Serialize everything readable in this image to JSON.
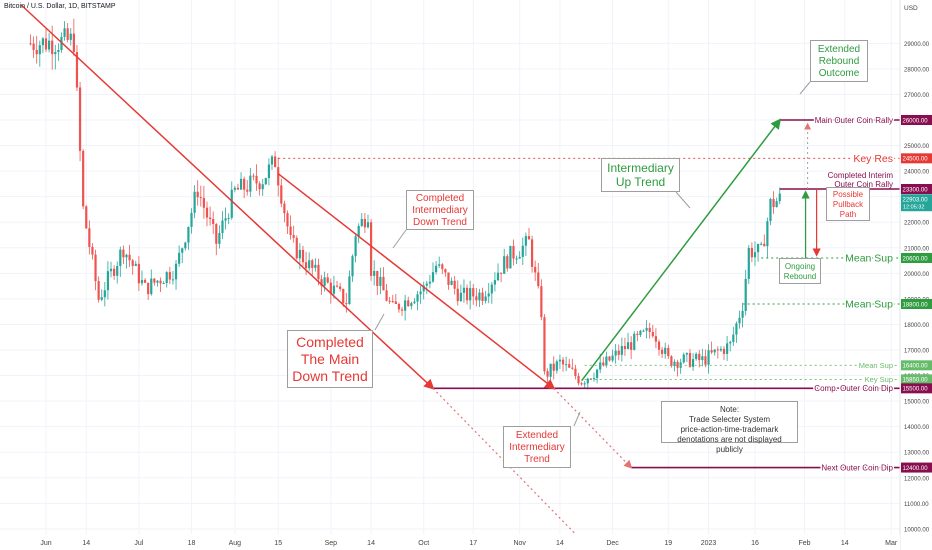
{
  "header": {
    "symbol": "Bitcoin / U.S. Dollar, 1D, BITSTAMP",
    "currency": "USD"
  },
  "colors": {
    "bull": "#26a69a",
    "bear": "#ef5350",
    "red": "#e53935",
    "green": "#2e9c3f",
    "maroon": "#880e4f",
    "grid": "#f0f3fa",
    "dotted_red": "#e57373",
    "dotted_green": "#8bc48e"
  },
  "chart_data": {
    "type": "candlestick",
    "ylim": [
      9800,
      30500
    ],
    "y_ticks": [
      10000,
      11000,
      12000,
      13000,
      14000,
      15000,
      16000,
      17000,
      18000,
      19000,
      20000,
      21000,
      22000,
      23000,
      24000,
      25000,
      26000,
      27000,
      28000,
      29000
    ],
    "x_ticks": [
      {
        "label": "Jun",
        "date": "2022-06-01"
      },
      {
        "label": "14",
        "date": "2022-06-14"
      },
      {
        "label": "Jul",
        "date": "2022-07-01"
      },
      {
        "label": "18",
        "date": "2022-07-18"
      },
      {
        "label": "Aug",
        "date": "2022-08-01"
      },
      {
        "label": "15",
        "date": "2022-08-15"
      },
      {
        "label": "Sep",
        "date": "2022-09-01"
      },
      {
        "label": "14",
        "date": "2022-09-14"
      },
      {
        "label": "Oct",
        "date": "2022-10-01"
      },
      {
        "label": "17",
        "date": "2022-10-17"
      },
      {
        "label": "Nov",
        "date": "2022-11-01"
      },
      {
        "label": "14",
        "date": "2022-11-14"
      },
      {
        "label": "Dec",
        "date": "2022-12-01"
      },
      {
        "label": "19",
        "date": "2022-12-19"
      },
      {
        "label": "2023",
        "date": "2023-01-01"
      },
      {
        "label": "16",
        "date": "2023-01-16"
      },
      {
        "label": "Feb",
        "date": "2023-02-01"
      },
      {
        "label": "14",
        "date": "2023-02-14"
      },
      {
        "label": "Mar",
        "date": "2023-03-01"
      }
    ],
    "price_path": [
      [
        "2022-05-27",
        29000
      ],
      [
        "2022-06-10",
        29100
      ],
      [
        "2022-06-13",
        22500
      ],
      [
        "2022-06-18",
        19000
      ],
      [
        "2022-06-26",
        21000
      ],
      [
        "2022-07-03",
        19400
      ],
      [
        "2022-07-13",
        20200
      ],
      [
        "2022-07-20",
        23300
      ],
      [
        "2022-07-26",
        21200
      ],
      [
        "2022-08-01",
        23200
      ],
      [
        "2022-08-10",
        23700
      ],
      [
        "2022-08-14",
        24400
      ],
      [
        "2022-08-19",
        21200
      ],
      [
        "2022-08-27",
        20000
      ],
      [
        "2022-09-06",
        18900
      ],
      [
        "2022-09-09",
        21600
      ],
      [
        "2022-09-13",
        22400
      ],
      [
        "2022-09-14",
        20200
      ],
      [
        "2022-09-21",
        18600
      ],
      [
        "2022-10-01",
        19400
      ],
      [
        "2022-10-05",
        20300
      ],
      [
        "2022-10-13",
        19100
      ],
      [
        "2022-10-20",
        19200
      ],
      [
        "2022-10-25",
        20100
      ],
      [
        "2022-10-29",
        20700
      ],
      [
        "2022-11-04",
        21200
      ],
      [
        "2022-11-08",
        18500
      ],
      [
        "2022-11-09",
        16000
      ],
      [
        "2022-11-14",
        16500
      ],
      [
        "2022-11-21",
        15800
      ],
      [
        "2022-11-28",
        16400
      ],
      [
        "2022-12-05",
        17100
      ],
      [
        "2022-12-14",
        17800
      ],
      [
        "2022-12-19",
        16600
      ],
      [
        "2022-12-30",
        16600
      ],
      [
        "2023-01-08",
        17200
      ],
      [
        "2023-01-12",
        18800
      ],
      [
        "2023-01-14",
        20900
      ],
      [
        "2023-01-18",
        20800
      ],
      [
        "2023-01-21",
        22700
      ],
      [
        "2023-01-24",
        22900
      ]
    ],
    "levels": [
      {
        "label": "Main Outer Coin Rally",
        "value": 26000,
        "tag": "26000.00",
        "color": "#880e4f",
        "from": "2023-01-24",
        "style": "solid"
      },
      {
        "label": "Key Res",
        "value": 24500,
        "tag": "24500.00",
        "color": "#e53935",
        "from": "2022-08-15",
        "style": "dotted"
      },
      {
        "label": "Completed Interim Outer Coin Rally",
        "line1": "Completed Interim",
        "line2": "Outer Coin Rally",
        "value": 23300,
        "tag": "23300.00",
        "color": "#880e4f",
        "from": "2023-01-24",
        "style": "solid"
      },
      {
        "label": "Mean Sup",
        "value": 20600,
        "tag": "20600.00",
        "color": "#2e9c3f",
        "from": "2023-01-18",
        "style": "dotted"
      },
      {
        "label": "Mean Sup",
        "value": 18800,
        "tag": "18800.00",
        "color": "#2e9c3f",
        "from": "2023-01-12",
        "style": "dotted"
      },
      {
        "label": "Mean Sup",
        "value": 16400,
        "tag": "16400.00",
        "color": "#66bb6a",
        "from": "2022-11-22",
        "style": "dotted",
        "small": true
      },
      {
        "label": "Key Sup",
        "value": 15850,
        "tag": "15850.00",
        "color": "#66bb6a",
        "from": "2022-11-22",
        "style": "dotted",
        "small": true
      },
      {
        "label": "Comp. Outer Coin Dip",
        "value": 15500,
        "tag": "15500.00",
        "color": "#880e4f",
        "from": "2022-10-04",
        "style": "solid"
      },
      {
        "label": "Next Outer Coin Dip",
        "value": 12400,
        "tag": "12400.00",
        "color": "#880e4f",
        "from": "2022-12-07",
        "style": "solid"
      }
    ],
    "current_price": {
      "value": 22900,
      "tag": "22903.00",
      "countdown": "12:05:32"
    },
    "trendlines": [
      {
        "name": "main-down-trend",
        "color": "#e53935",
        "style": "solid",
        "from": [
          "2022-05-24",
          30500
        ],
        "to": [
          "2022-10-04",
          15500
        ],
        "arrow": true
      },
      {
        "name": "main-down-extension",
        "color": "#e57373",
        "style": "dotted",
        "from": [
          "2022-10-04",
          15500
        ],
        "to": [
          "2022-11-19",
          9800
        ]
      },
      {
        "name": "intermediary-down-trend",
        "color": "#e53935",
        "style": "solid",
        "from": [
          "2022-08-15",
          23900
        ],
        "to": [
          "2022-11-12",
          15500
        ],
        "arrow": true
      },
      {
        "name": "intermediary-down-extension",
        "color": "#e57373",
        "style": "dotted",
        "from": [
          "2022-11-12",
          15500
        ],
        "to": [
          "2022-12-07",
          12400
        ],
        "arrow": true
      },
      {
        "name": "intermediary-up-trend",
        "color": "#2e9c3f",
        "style": "solid",
        "from": [
          "2022-11-21",
          15800
        ],
        "to": [
          "2023-01-24",
          26000
        ],
        "arrow": true
      }
    ],
    "annotations": [
      {
        "text": [
          "Completed",
          "The Main",
          "Down Trend"
        ],
        "color": "#e53935"
      },
      {
        "text": [
          "Completed",
          "Intermediary",
          "Down Trend"
        ],
        "color": "#e53935"
      },
      {
        "text": [
          "Extended",
          "Intermediary",
          "Trend"
        ],
        "color": "#e53935"
      },
      {
        "text": [
          "Intermediary",
          "Up Trend"
        ],
        "color": "#2e9c3f"
      },
      {
        "text": [
          "Extended",
          "Rebound",
          "Outcome"
        ],
        "color": "#2e9c3f"
      },
      {
        "text": [
          "Possible",
          "Pullback",
          "Path"
        ],
        "color": "#e53935"
      },
      {
        "text": [
          "Ongoing",
          "Rebound"
        ],
        "color": "#2e9c3f"
      }
    ],
    "note": [
      "Note:",
      "Trade Selecter System",
      "price-action-time-trademark",
      "denotations are not displayed publicly"
    ]
  }
}
